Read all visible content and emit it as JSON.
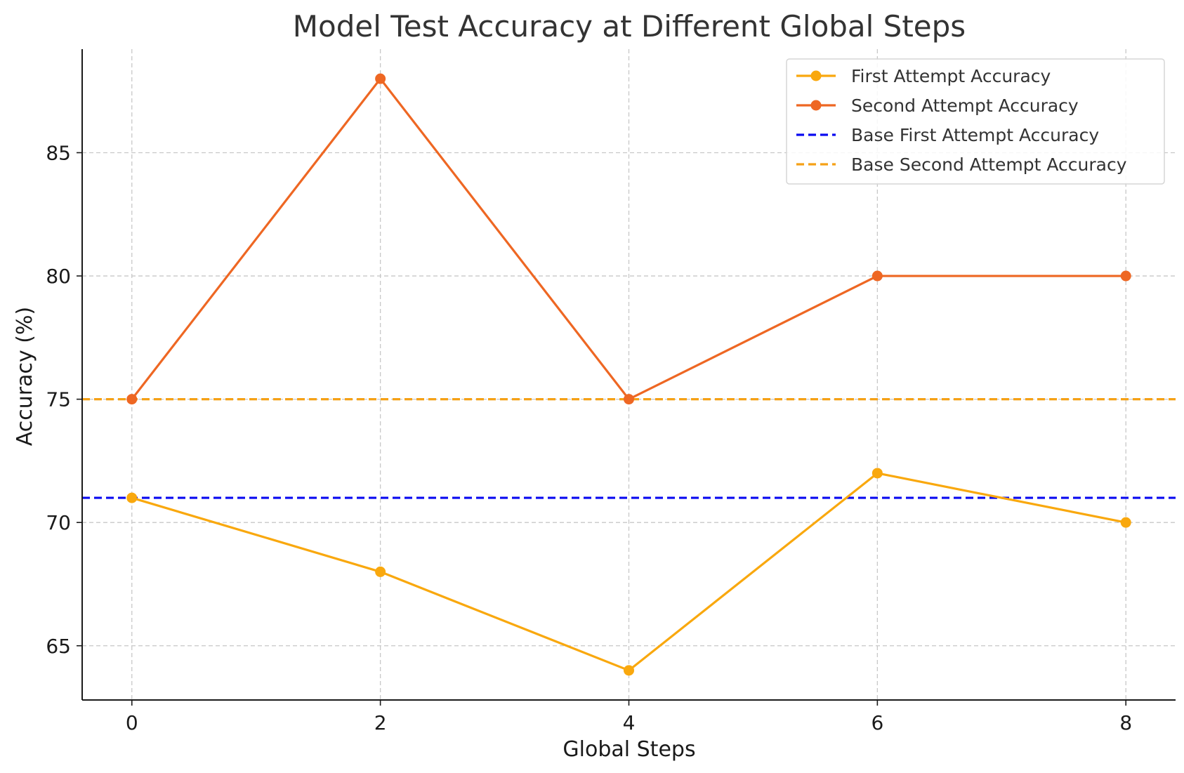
{
  "chart_data": {
    "type": "line",
    "title": "Model Test Accuracy at Different Global Steps",
    "xlabel": "Global Steps",
    "ylabel": "Accuracy (%)",
    "x": [
      0,
      2,
      4,
      6,
      8
    ],
    "xlim": [
      -0.4,
      8.4
    ],
    "ylim": [
      62.8,
      89.2
    ],
    "xticks": [
      0,
      2,
      4,
      6,
      8
    ],
    "yticks": [
      65,
      70,
      75,
      80,
      85
    ],
    "grid": true,
    "legend_position": "top-right",
    "series": [
      {
        "name": "First Attempt Accuracy",
        "values": [
          71,
          68,
          64,
          72,
          70
        ],
        "color": "#F9A80E",
        "style": "solid",
        "marker": "circle"
      },
      {
        "name": "Second Attempt Accuracy",
        "values": [
          75,
          88,
          75,
          80,
          80
        ],
        "color": "#EE6723",
        "style": "solid",
        "marker": "circle"
      }
    ],
    "reference_lines": [
      {
        "name": "Base First Attempt Accuracy",
        "value": 71,
        "color": "#0A0AF0",
        "style": "dashed"
      },
      {
        "name": "Base Second Attempt Accuracy",
        "value": 75,
        "color": "#F5A116",
        "style": "dashed"
      }
    ]
  }
}
